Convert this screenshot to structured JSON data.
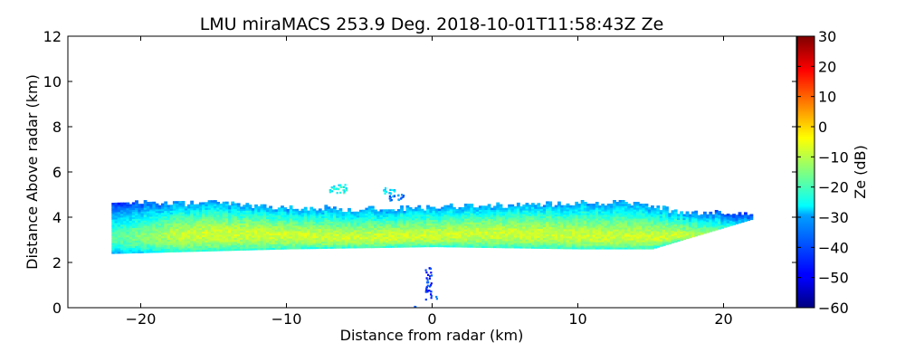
{
  "chart_data": {
    "type": "heatmap",
    "title": "LMU miraMACS 253.9 Deg. 2018-10-01T11:58:43Z  Ze",
    "xlabel": "Distance from radar (km)",
    "ylabel": "Distance Above radar  (km)",
    "xlim": [
      -25,
      25
    ],
    "ylim": [
      0,
      12
    ],
    "xticks": [
      -20,
      -10,
      0,
      10,
      20
    ],
    "xtick_labels": [
      "−20",
      "−10",
      "0",
      "10",
      "20"
    ],
    "yticks": [
      0,
      2,
      4,
      6,
      8,
      10,
      12
    ],
    "ytick_labels": [
      "0",
      "2",
      "4",
      "6",
      "8",
      "10",
      "12"
    ],
    "colorbar": {
      "label": "Ze (dB)",
      "range": [
        -60,
        30
      ],
      "colormap": "jet",
      "ticks": [
        -60,
        -50,
        -40,
        -30,
        -20,
        -10,
        0,
        10,
        20,
        30
      ],
      "tick_labels": [
        "−60",
        "−50",
        "−40",
        "−30",
        "−20",
        "−10",
        "0",
        "10",
        "20",
        "30"
      ]
    },
    "cloud_layer": {
      "x_extent_km": [
        -22,
        21.8
      ],
      "base_km": [
        {
          "x": -22,
          "y": 2.4
        },
        {
          "x": -10,
          "y": 2.6
        },
        {
          "x": 0,
          "y": 2.7
        },
        {
          "x": 10,
          "y": 2.6
        },
        {
          "x": 15,
          "y": 2.6
        },
        {
          "x": 21.8,
          "y": 3.9
        }
      ],
      "top_km": [
        {
          "x": -22,
          "y": 4.6
        },
        {
          "x": -15,
          "y": 4.6
        },
        {
          "x": -10,
          "y": 4.4
        },
        {
          "x": -5,
          "y": 4.3
        },
        {
          "x": 0,
          "y": 4.4
        },
        {
          "x": 5,
          "y": 4.5
        },
        {
          "x": 10,
          "y": 4.6
        },
        {
          "x": 14,
          "y": 4.6
        },
        {
          "x": 17,
          "y": 4.2
        },
        {
          "x": 21.8,
          "y": 4.1
        }
      ],
      "core_height_km": 3.2,
      "core_ze_db": -8,
      "top_ze_db": -35
    },
    "patches": [
      {
        "x": -6.5,
        "y": 5.3,
        "width_km": 1.2,
        "height_km": 0.4,
        "ze_db": -25
      },
      {
        "x": -3.0,
        "y": 5.2,
        "width_km": 0.8,
        "height_km": 0.3,
        "ze_db": -30
      },
      {
        "x": -2.5,
        "y": 4.9,
        "width_km": 1.0,
        "height_km": 0.3,
        "ze_db": -38
      },
      {
        "x": -0.3,
        "y": 1.1,
        "width_km": 0.4,
        "height_km": 1.4,
        "ze_db": -45
      },
      {
        "x": -1.3,
        "y": 0.1,
        "width_km": 0.2,
        "height_km": 0.1,
        "ze_db": -40
      },
      {
        "x": 0.3,
        "y": 0.5,
        "width_km": 0.2,
        "height_km": 0.2,
        "ze_db": -35
      }
    ]
  }
}
